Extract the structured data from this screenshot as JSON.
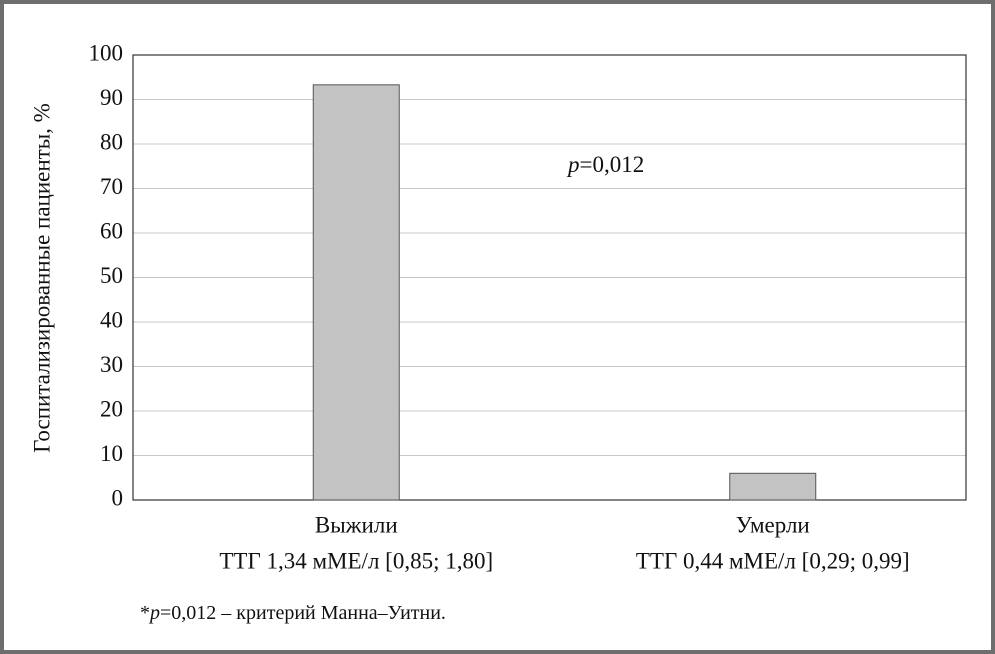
{
  "chart_data": {
    "type": "bar",
    "y_label": "Госпитализированные пациенты, %",
    "categories": [
      "Выжили",
      "Умерли"
    ],
    "category_details": [
      "ТТГ 1,34 мМЕ/л [0,85; 1,80]",
      "ТТГ 0,44 мМЕ/л [0,29; 0,99]"
    ],
    "values": [
      93.3,
      6
    ],
    "color": "#c3c3c3",
    "ylim": [
      0,
      100
    ],
    "yticks": [
      0,
      10,
      20,
      30,
      40,
      50,
      60,
      70,
      80,
      90,
      100
    ],
    "grid": true,
    "annotation": {
      "symbol": "p",
      "text": "=0,012"
    },
    "footnote": {
      "prefix": "*",
      "symbol": "p",
      "text": "=0,012 – критерий Манна–Уитни."
    }
  }
}
